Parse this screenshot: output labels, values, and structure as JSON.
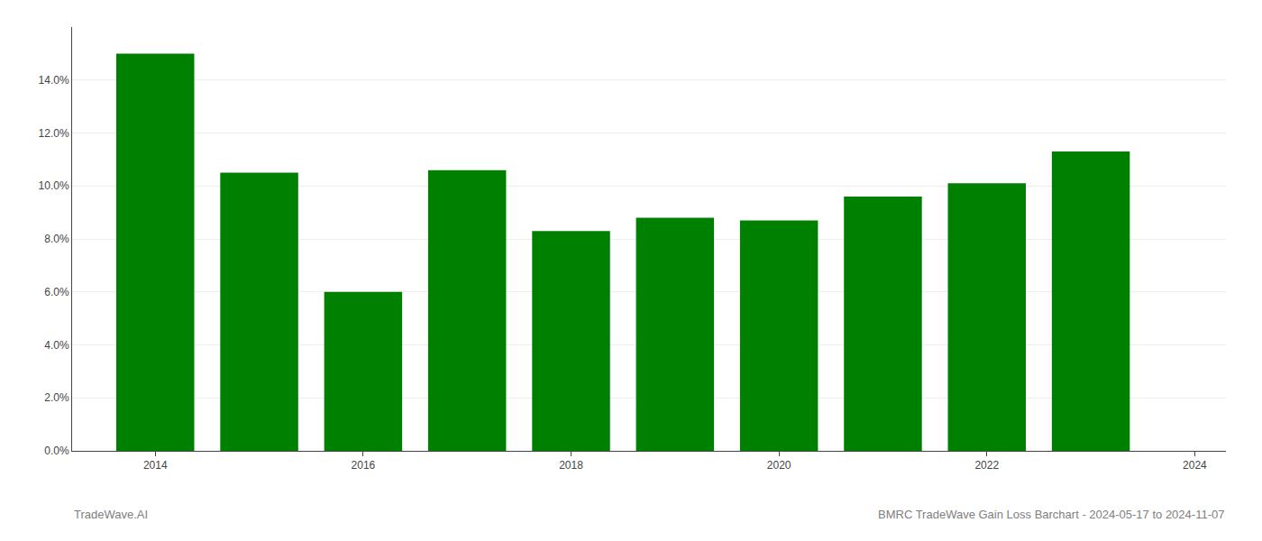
{
  "chart_data": {
    "type": "bar",
    "x": [
      2014,
      2015,
      2016,
      2017,
      2018,
      2019,
      2020,
      2021,
      2022,
      2023
    ],
    "values": [
      0.15,
      0.105,
      0.06,
      0.106,
      0.083,
      0.088,
      0.087,
      0.096,
      0.101,
      0.113
    ],
    "color": "#008000",
    "xlim": [
      2013.2,
      2024.3
    ],
    "xticks": [
      2014,
      2016,
      2018,
      2020,
      2022,
      2024
    ],
    "ylim": [
      0,
      0.16
    ],
    "yticks": [
      {
        "value": 0.0,
        "label": "0.0%"
      },
      {
        "value": 0.02,
        "label": "2.0%"
      },
      {
        "value": 0.04,
        "label": "4.0%"
      },
      {
        "value": 0.06,
        "label": "6.0%"
      },
      {
        "value": 0.08,
        "label": "8.0%"
      },
      {
        "value": 0.1,
        "label": "10.0%"
      },
      {
        "value": 0.12,
        "label": "12.0%"
      },
      {
        "value": 0.14,
        "label": "14.0%"
      }
    ],
    "grid": true,
    "annotations": [
      "TradeWave.AI",
      "BMRC TradeWave Gain Loss Barchart - 2024-05-17 to 2024-11-07"
    ]
  }
}
